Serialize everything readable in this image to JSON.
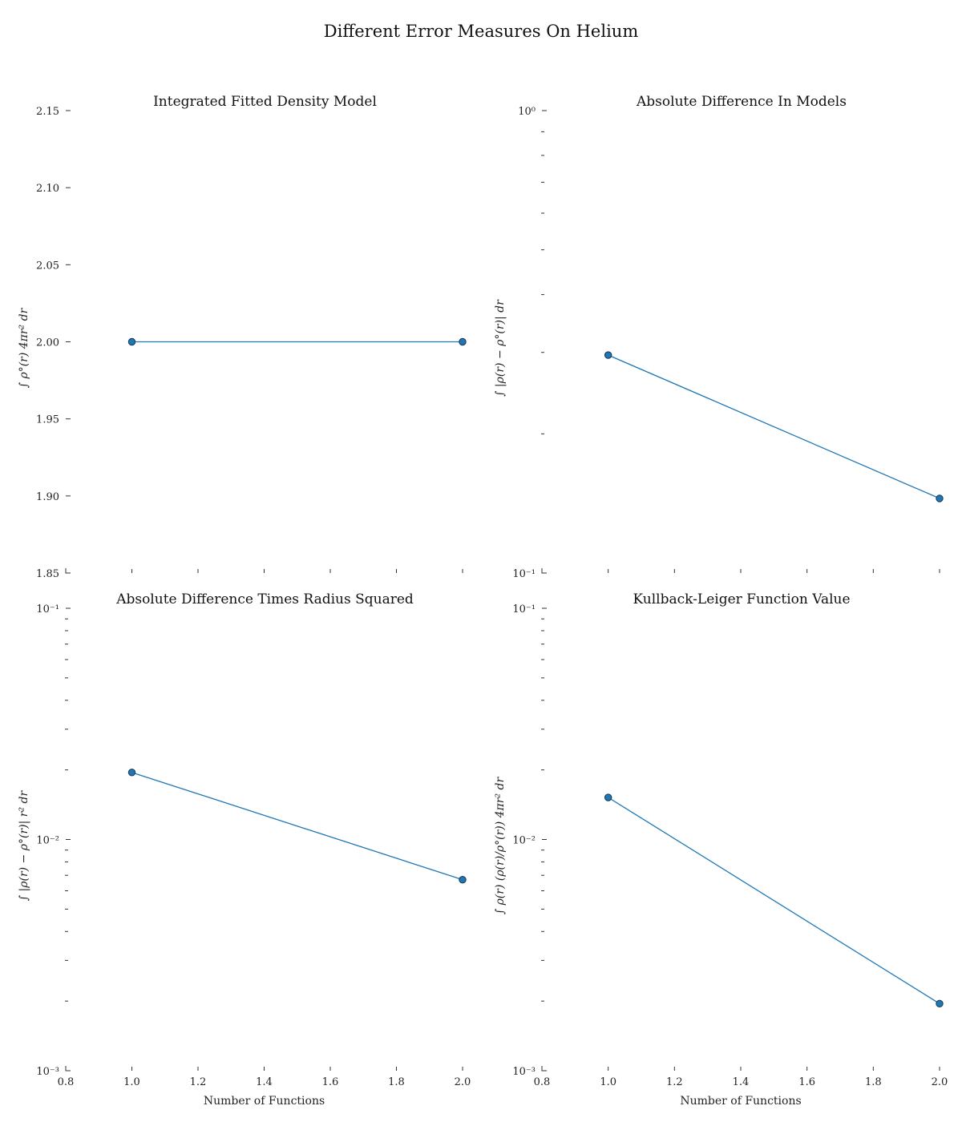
{
  "title": "Different Error Measures On Helium",
  "colors": {
    "series": "#1f77b4",
    "marker_edge": "#16324f",
    "text": "#111111"
  },
  "chart_data": [
    {
      "type": "line",
      "title": "Integrated Fitted Density Model",
      "xlabel": "",
      "ylabel": "∫ ρ°(r) 4πr² dr",
      "xscale": "linear",
      "yscale": "linear",
      "xlim": [
        0.8,
        2.0
      ],
      "ylim": [
        1.85,
        2.15
      ],
      "x_ticks": [
        0.8,
        1.0,
        1.2,
        1.4,
        1.6,
        1.8,
        2.0
      ],
      "x_tick_labels": [],
      "y_ticks": [
        1.85,
        1.9,
        1.95,
        2.0,
        2.05,
        2.1,
        2.15
      ],
      "y_tick_labels": [
        "1.85",
        "1.90",
        "1.95",
        "2.00",
        "2.05",
        "2.10",
        "2.15"
      ],
      "grid": false,
      "series": [
        {
          "x": [
            1.0,
            2.0
          ],
          "y": [
            2.0,
            2.0
          ]
        }
      ]
    },
    {
      "type": "line",
      "title": "Absolute Difference In Models",
      "xlabel": "",
      "ylabel": "∫ |ρ(r) − ρ°(r)| dr",
      "xscale": "linear",
      "yscale": "log",
      "xlim": [
        0.8,
        2.0
      ],
      "ylim": [
        0.1,
        1.0
      ],
      "x_ticks": [
        0.8,
        1.0,
        1.2,
        1.4,
        1.6,
        1.8,
        2.0
      ],
      "x_tick_labels": [],
      "y_major_ticks": [
        0.1,
        1.0
      ],
      "y_major_labels": [
        "10⁻¹",
        "10⁰"
      ],
      "y_minor_ticks": [
        0.2,
        0.3,
        0.4,
        0.5,
        0.6,
        0.7,
        0.8,
        0.9
      ],
      "grid": false,
      "series": [
        {
          "x": [
            1.0,
            2.0
          ],
          "y": [
            0.296,
            0.145
          ]
        }
      ]
    },
    {
      "type": "line",
      "title": "Absolute Difference Times Radius Squared",
      "xlabel": "Number of Functions",
      "ylabel": "∫ |ρ(r) − ρ°(r)| r² dr",
      "xscale": "linear",
      "yscale": "log",
      "xlim": [
        0.8,
        2.0
      ],
      "ylim": [
        0.001,
        0.1
      ],
      "x_ticks": [
        0.8,
        1.0,
        1.2,
        1.4,
        1.6,
        1.8,
        2.0
      ],
      "x_tick_labels": [
        "0.8",
        "1.0",
        "1.2",
        "1.4",
        "1.6",
        "1.8",
        "2.0"
      ],
      "y_major_ticks": [
        0.001,
        0.01,
        0.1
      ],
      "y_major_labels": [
        "10⁻³",
        "10⁻²",
        "10⁻¹"
      ],
      "y_minor_ticks": [
        0.002,
        0.003,
        0.004,
        0.005,
        0.006,
        0.007,
        0.008,
        0.009,
        0.02,
        0.03,
        0.04,
        0.05,
        0.06,
        0.07,
        0.08,
        0.09
      ],
      "grid": false,
      "series": [
        {
          "x": [
            1.0,
            2.0
          ],
          "y": [
            0.0195,
            0.0067
          ]
        }
      ]
    },
    {
      "type": "line",
      "title": "Kullback-Leiger Function Value",
      "xlabel": "Number of Functions",
      "ylabel": "∫ ρ(r) (ρ(r)/ρ°(r)) 4πr² dr",
      "xscale": "linear",
      "yscale": "log",
      "xlim": [
        0.8,
        2.0
      ],
      "ylim": [
        0.001,
        0.1
      ],
      "x_ticks": [
        0.8,
        1.0,
        1.2,
        1.4,
        1.6,
        1.8,
        2.0
      ],
      "x_tick_labels": [
        "0.8",
        "1.0",
        "1.2",
        "1.4",
        "1.6",
        "1.8",
        "2.0"
      ],
      "y_major_ticks": [
        0.001,
        0.01,
        0.1
      ],
      "y_major_labels": [
        "10⁻³",
        "10⁻²",
        "10⁻¹"
      ],
      "y_minor_ticks": [
        0.002,
        0.003,
        0.004,
        0.005,
        0.006,
        0.007,
        0.008,
        0.009,
        0.02,
        0.03,
        0.04,
        0.05,
        0.06,
        0.07,
        0.08,
        0.09
      ],
      "grid": false,
      "series": [
        {
          "x": [
            1.0,
            2.0
          ],
          "y": [
            0.0152,
            0.00195
          ]
        }
      ]
    }
  ]
}
